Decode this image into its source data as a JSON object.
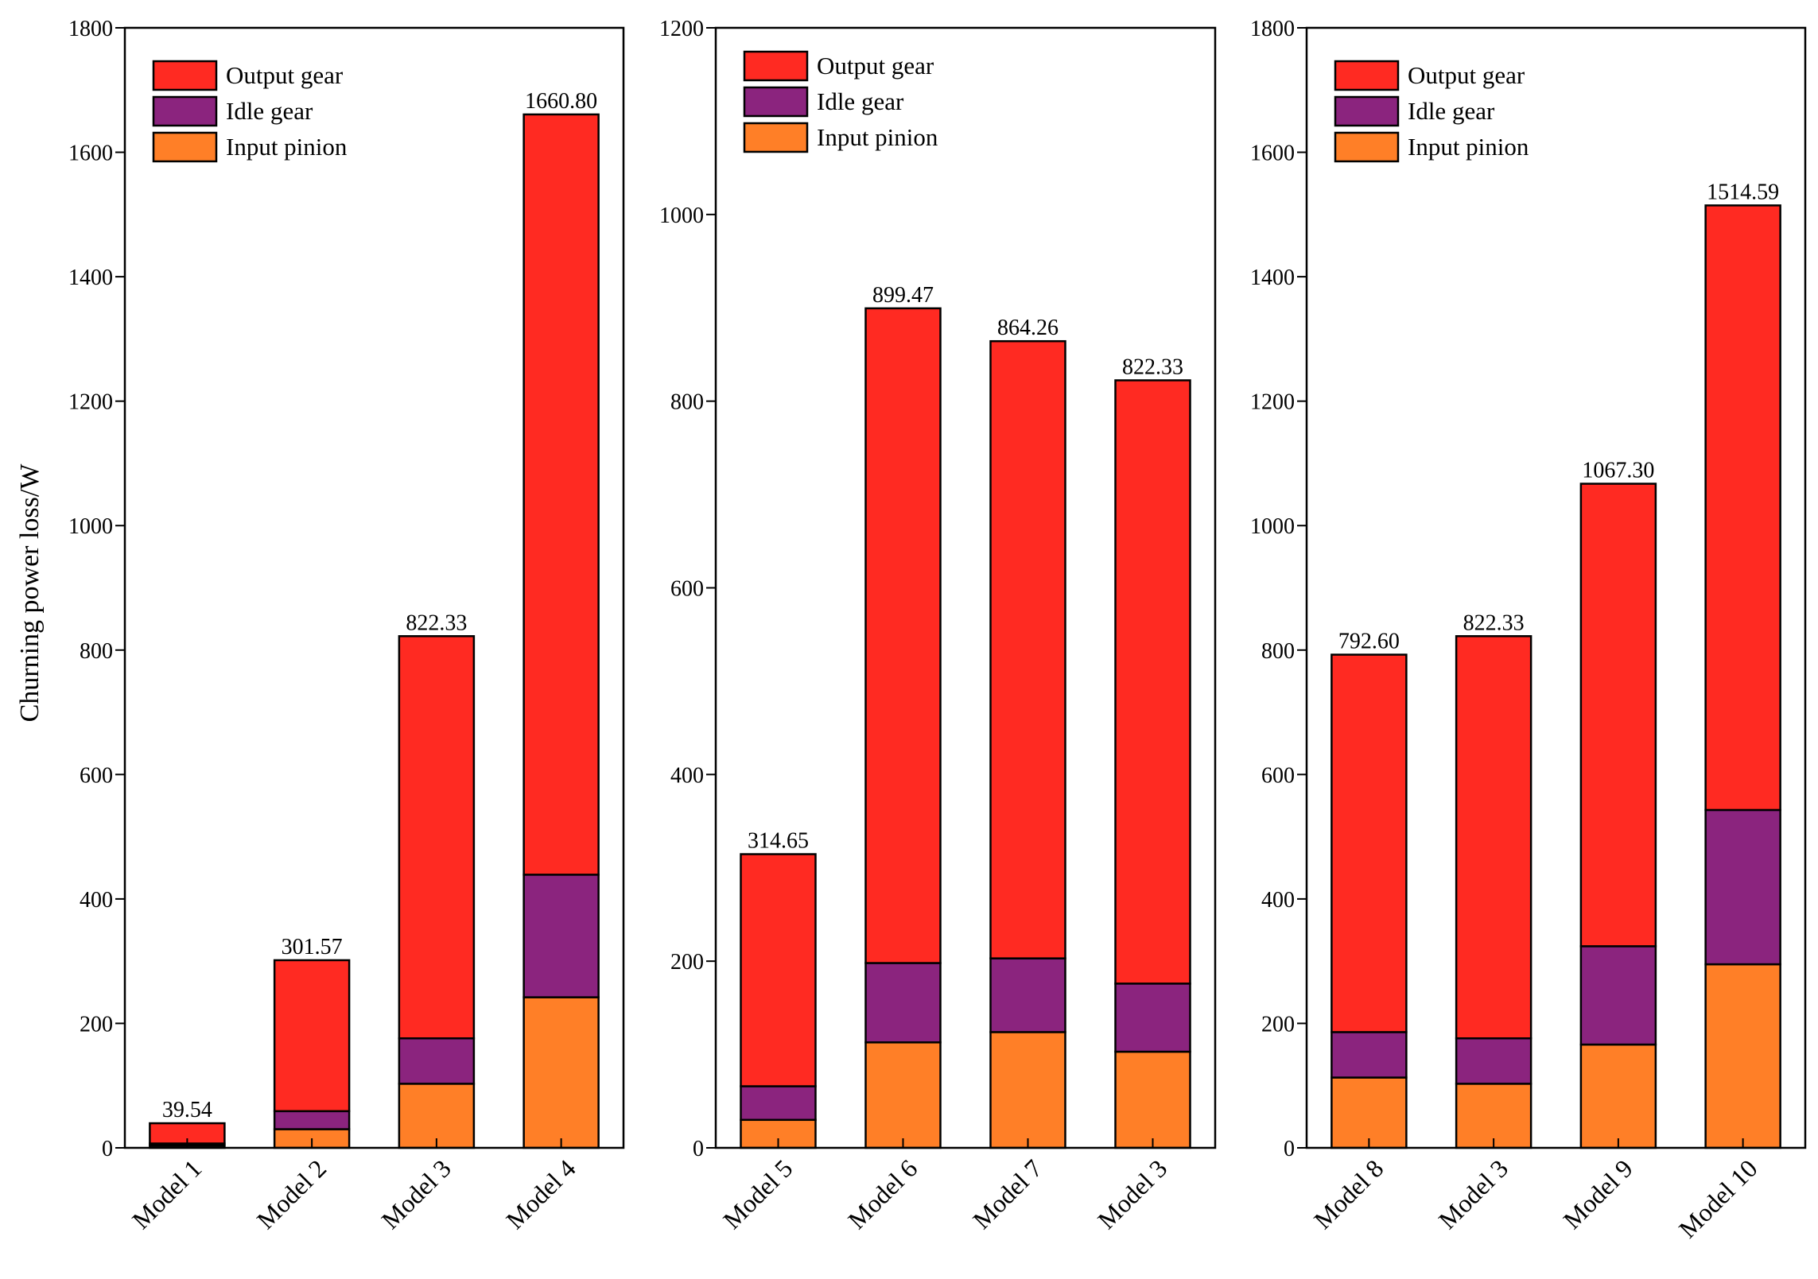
{
  "chart_data": {
    "type": "bar",
    "stacked": true,
    "ylabel": "Churning power loss/W",
    "legend": {
      "placement": "top-left",
      "entries": [
        "Output gear",
        "Idle gear",
        "Input pinion"
      ]
    },
    "colors": {
      "Input pinion": "#FF7F27",
      "Idle gear": "#8B247E",
      "Output gear": "#FF2A22",
      "Model1 base": "#111111"
    },
    "panels": [
      {
        "ylim": [
          0,
          1800
        ],
        "yticks": [
          "0",
          "200",
          "400",
          "600",
          "800",
          "1000",
          "1200",
          "1400",
          "1600",
          "1800"
        ],
        "categories": [
          "Model 1",
          "Model 2",
          "Model 3",
          "Model 4"
        ],
        "totals": [
          "39.54",
          "301.57",
          "822.33",
          "1660.80"
        ],
        "series": [
          {
            "name": "Input pinion",
            "values": [
              4,
              30,
              103,
              242
            ]
          },
          {
            "name": "Idle gear",
            "values": [
              3,
              29,
              73,
              197
            ]
          },
          {
            "name": "Output gear",
            "values": [
              32.54,
              242.57,
              646.33,
              1221.8
            ]
          }
        ]
      },
      {
        "ylim": [
          0,
          1200
        ],
        "yticks": [
          "0",
          "200",
          "400",
          "600",
          "800",
          "1000",
          "1200"
        ],
        "categories": [
          "Model 5",
          "Model 6",
          "Model 7",
          "Model 3"
        ],
        "totals": [
          "314.65",
          "899.47",
          "864.26",
          "822.33"
        ],
        "series": [
          {
            "name": "Input pinion",
            "values": [
              30,
              113,
              124,
              103
            ]
          },
          {
            "name": "Idle gear",
            "values": [
              36,
              85,
              79,
              73
            ]
          },
          {
            "name": "Output gear",
            "values": [
              248.65,
              701.47,
              661.26,
              646.33
            ]
          }
        ]
      },
      {
        "ylim": [
          0,
          1800
        ],
        "yticks": [
          "0",
          "200",
          "400",
          "600",
          "800",
          "1000",
          "1200",
          "1400",
          "1600",
          "1800"
        ],
        "categories": [
          "Model 8",
          "Model 3",
          "Model 9",
          "Model 10"
        ],
        "totals": [
          "792.60",
          "822.33",
          "1067.30",
          "1514.59"
        ],
        "series": [
          {
            "name": "Input pinion",
            "values": [
              113,
              103,
              166,
              295
            ]
          },
          {
            "name": "Idle gear",
            "values": [
              73,
              73,
              158,
              248
            ]
          },
          {
            "name": "Output gear",
            "values": [
              606.6,
              646.33,
              743.3,
              971.59
            ]
          }
        ]
      }
    ]
  }
}
